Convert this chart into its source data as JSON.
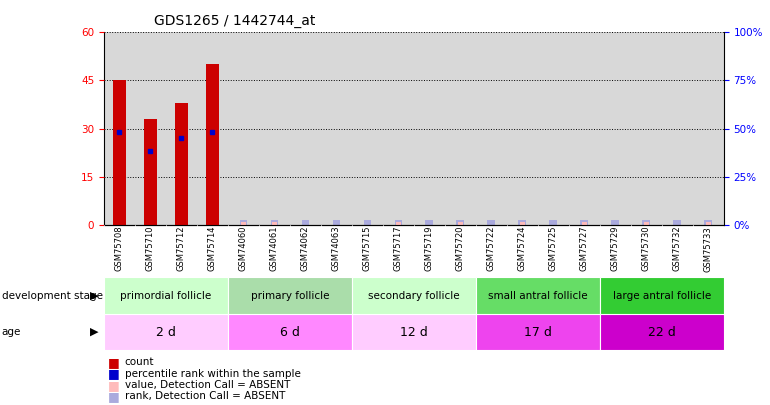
{
  "title": "GDS1265 / 1442744_at",
  "samples": [
    "GSM75708",
    "GSM75710",
    "GSM75712",
    "GSM75714",
    "GSM74060",
    "GSM74061",
    "GSM74062",
    "GSM74063",
    "GSM75715",
    "GSM75717",
    "GSM75719",
    "GSM75720",
    "GSM75722",
    "GSM75724",
    "GSM75725",
    "GSM75727",
    "GSM75729",
    "GSM75730",
    "GSM75732",
    "GSM75733"
  ],
  "count_values": [
    45,
    33,
    38,
    50,
    0,
    0,
    0,
    0,
    0,
    0,
    0,
    0,
    0,
    0,
    0,
    0,
    0,
    0,
    0,
    0
  ],
  "percentile_values": [
    29,
    23,
    27,
    29,
    0,
    0,
    0,
    0,
    0,
    0,
    0,
    0,
    0,
    0,
    0,
    0,
    0,
    0,
    0,
    0
  ],
  "absent_rank_values": [
    0,
    0,
    0,
    0,
    1,
    1,
    1,
    1,
    1,
    1,
    1,
    1,
    1,
    1,
    1,
    1,
    1,
    1,
    1,
    1
  ],
  "absent_count_values": [
    0,
    0,
    0,
    0,
    1,
    1,
    0,
    0,
    0,
    1,
    0,
    1,
    0,
    1,
    0,
    1,
    0,
    1,
    0,
    1
  ],
  "stage_groups": [
    {
      "label": "primordial follicle",
      "start": 0,
      "end": 4,
      "color": "#CCFFCC"
    },
    {
      "label": "primary follicle",
      "start": 4,
      "end": 8,
      "color": "#AAFFAA"
    },
    {
      "label": "secondary follicle",
      "start": 8,
      "end": 12,
      "color": "#CCFFCC"
    },
    {
      "label": "small antral follicle",
      "start": 12,
      "end": 16,
      "color": "#55DD55"
    },
    {
      "label": "large antral follicle",
      "start": 16,
      "end": 20,
      "color": "#33CC33"
    }
  ],
  "age_groups": [
    {
      "label": "2 d",
      "start": 0,
      "end": 4,
      "color": "#FFCCFF"
    },
    {
      "label": "6 d",
      "start": 4,
      "end": 8,
      "color": "#FF99FF"
    },
    {
      "label": "12 d",
      "start": 8,
      "end": 12,
      "color": "#FFCCFF"
    },
    {
      "label": "17 d",
      "start": 12,
      "end": 16,
      "color": "#EE55EE"
    },
    {
      "label": "22 d",
      "start": 16,
      "end": 20,
      "color": "#CC00CC"
    }
  ],
  "ylim_left": [
    0,
    60
  ],
  "ylim_right": [
    0,
    100
  ],
  "yticks_left": [
    0,
    15,
    30,
    45,
    60
  ],
  "yticks_right": [
    0,
    25,
    50,
    75,
    100
  ],
  "bar_color_red": "#CC0000",
  "bar_color_blue": "#0000CC",
  "absent_bar_color": "#FFBBBB",
  "absent_rank_color": "#AAAADD",
  "tick_bg_color": "#CCCCCC"
}
